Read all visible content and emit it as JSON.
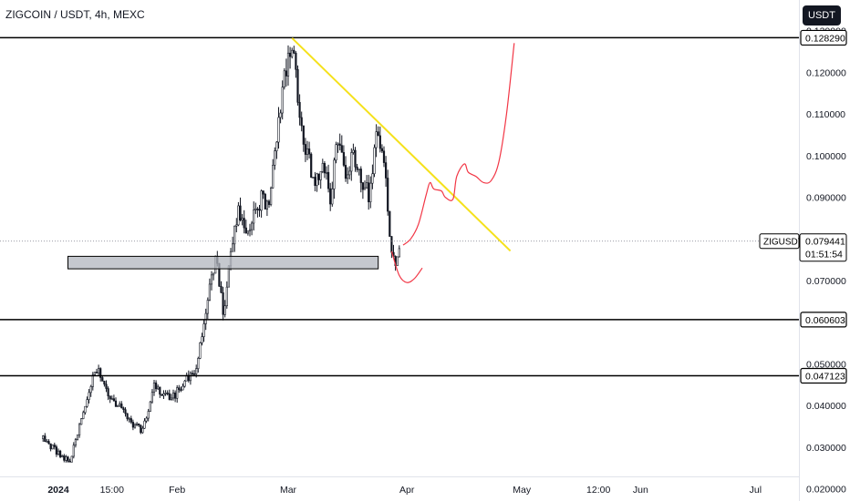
{
  "header": {
    "symbol_title": "ZIGCOIN / USDT, 4h, MEXC",
    "currency_button": "USDT"
  },
  "colors": {
    "background": "#ffffff",
    "candles": "#131722",
    "trendline": "#f5e11b",
    "projection": "#f23645",
    "zone_fill": "#b2b5be",
    "level_line": "#000000",
    "tag_dark": "#131722"
  },
  "chart_data": {
    "type": "candlestick",
    "symbol": "ZIGCOIN / USDT",
    "timeframe": "4h",
    "exchange": "MEXC",
    "y_axis": {
      "ylim": [
        0.0155,
        0.1325
      ],
      "ticks": [
        "0.130000",
        "0.120000",
        "0.110000",
        "0.100000",
        "0.090000",
        "0.080000",
        "0.070000",
        "0.060000",
        "0.050000",
        "0.040000",
        "0.030000",
        "0.020000"
      ],
      "tick_values": [
        0.13,
        0.12,
        0.11,
        0.1,
        0.09,
        0.08,
        0.07,
        0.06,
        0.05,
        0.04,
        0.03,
        0.02
      ]
    },
    "x_axis": {
      "labels": [
        "2024",
        "15:00",
        "Feb",
        "Mar",
        "Apr",
        "May",
        "12:00",
        "Jun",
        "Jul"
      ],
      "label_days": [
        0,
        14,
        31,
        60,
        91,
        121,
        141,
        152,
        182
      ]
    },
    "price_path": [
      [
        -4,
        0.032
      ],
      [
        0,
        0.0285
      ],
      [
        3,
        0.0262
      ],
      [
        4,
        0.03
      ],
      [
        7,
        0.0395
      ],
      [
        9,
        0.047
      ],
      [
        10,
        0.049
      ],
      [
        13,
        0.042
      ],
      [
        16,
        0.0395
      ],
      [
        19,
        0.0355
      ],
      [
        22,
        0.034
      ],
      [
        25,
        0.045
      ],
      [
        27,
        0.042
      ],
      [
        30,
        0.042
      ],
      [
        33,
        0.046
      ],
      [
        36,
        0.049
      ],
      [
        39,
        0.065
      ],
      [
        41,
        0.076
      ],
      [
        43,
        0.062
      ],
      [
        45,
        0.076
      ],
      [
        47,
        0.087
      ],
      [
        49,
        0.081
      ],
      [
        51,
        0.085
      ],
      [
        53,
        0.09
      ],
      [
        55,
        0.088
      ],
      [
        57,
        0.105
      ],
      [
        59,
        0.12
      ],
      [
        61,
        0.128
      ],
      [
        63,
        0.11
      ],
      [
        65,
        0.1
      ],
      [
        67,
        0.092
      ],
      [
        69,
        0.1
      ],
      [
        71,
        0.09
      ],
      [
        73,
        0.105
      ],
      [
        75,
        0.095
      ],
      [
        77,
        0.1
      ],
      [
        79,
        0.095
      ],
      [
        81,
        0.09
      ],
      [
        83,
        0.104
      ],
      [
        85,
        0.1
      ],
      [
        86,
        0.085
      ],
      [
        87,
        0.078
      ],
      [
        88,
        0.074
      ],
      [
        89,
        0.0794
      ]
    ],
    "horizontal_levels": [
      {
        "price": 0.12829,
        "label": "0.128290"
      },
      {
        "price": 0.060603,
        "label": "0.060603"
      },
      {
        "price": 0.047123,
        "label": "0.047123"
      }
    ],
    "current_price": {
      "symbol": "ZIGUSDT",
      "price": 0.079441,
      "label": "0.079441",
      "countdown": "01:51:54"
    },
    "support_zone": {
      "day_from": 2.5,
      "day_to": 83.5,
      "price_low": 0.0728,
      "price_high": 0.0758
    },
    "trendline": [
      [
        61,
        0.1282
      ],
      [
        118,
        0.0771
      ]
    ],
    "projection_bounce": [
      [
        87,
        0.077
      ],
      [
        89,
        0.0712
      ],
      [
        91,
        0.0695
      ],
      [
        93,
        0.0705
      ],
      [
        95,
        0.073
      ]
    ],
    "projection_path": [
      [
        90,
        0.0785
      ],
      [
        92,
        0.08
      ],
      [
        94,
        0.0835
      ],
      [
        96,
        0.0905
      ],
      [
        97,
        0.0935
      ],
      [
        98,
        0.092
      ],
      [
        100,
        0.0915
      ],
      [
        101,
        0.09
      ],
      [
        103,
        0.0895
      ],
      [
        104,
        0.095
      ],
      [
        106,
        0.098
      ],
      [
        107,
        0.096
      ],
      [
        109,
        0.095
      ],
      [
        111,
        0.0935
      ],
      [
        113,
        0.094
      ],
      [
        115,
        0.0985
      ],
      [
        117,
        0.11
      ],
      [
        119,
        0.127
      ]
    ]
  }
}
